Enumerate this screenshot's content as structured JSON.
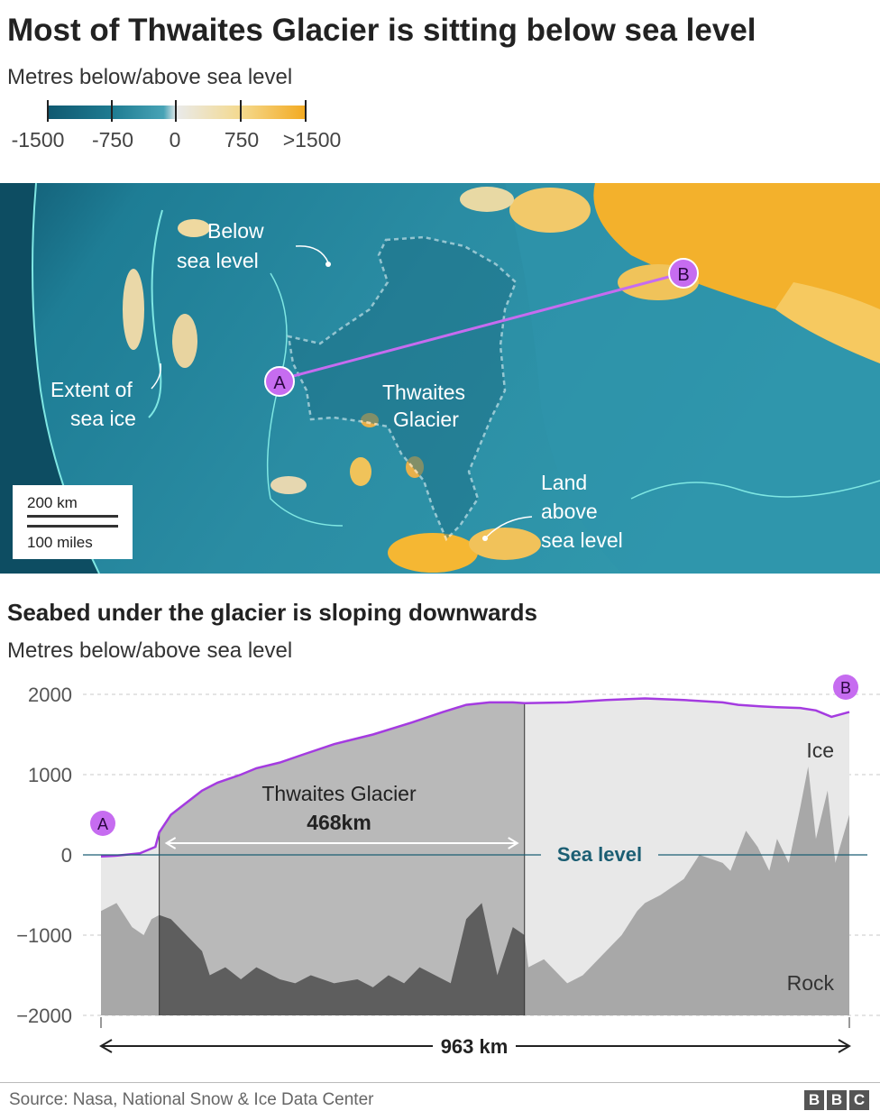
{
  "title": "Most of Thwaites Glacier is sitting below sea level",
  "map_legend": {
    "subtitle": "Metres below/above sea level",
    "ticks": [
      "-1500",
      "-750",
      "0",
      "750",
      ">1500"
    ]
  },
  "map": {
    "labels": {
      "below_1": "Below",
      "below_2": "sea level",
      "extent_1": "Extent of",
      "extent_2": "sea ice",
      "thwaites_1": "Thwaites",
      "thwaites_2": "Glacier",
      "land_1": "Land",
      "land_2": "above",
      "land_3": "sea level"
    },
    "point_a": "A",
    "point_b": "B",
    "scale_km": "200 km",
    "scale_miles": "100 miles",
    "colors": {
      "deep": "#0f5870",
      "mid": "#2b8ea6",
      "shallow": "#4fb0c4",
      "land": "#f3b12c",
      "coast": "#7fe7e3",
      "transect": "#c66cf0"
    }
  },
  "chart_title": "Seabed under the glacier is sloping downwards",
  "chart_ylabel": "Metres below/above sea level",
  "chart_data": {
    "type": "area",
    "title": "Seabed under the glacier is sloping downwards",
    "ylabel": "Metres below/above sea level",
    "ylim": [
      -2000,
      2000
    ],
    "yticks": [
      "2000",
      "1000",
      "0",
      "−1000",
      "−2000"
    ],
    "xlim_km": [
      0,
      963
    ],
    "distance_label": "963 km",
    "grid": "horizontal dashed",
    "series": [
      {
        "name": "Ice",
        "x_km": [
          0,
          20,
          50,
          70,
          75,
          90,
          110,
          130,
          150,
          180,
          200,
          230,
          260,
          300,
          350,
          400,
          440,
          470,
          500,
          530,
          545,
          600,
          650,
          700,
          750,
          800,
          820,
          850,
          870,
          900,
          920,
          940,
          963
        ],
        "values": [
          -20,
          -10,
          20,
          100,
          280,
          500,
          650,
          800,
          900,
          1000,
          1080,
          1150,
          1250,
          1380,
          1500,
          1650,
          1780,
          1870,
          1900,
          1900,
          1890,
          1900,
          1930,
          1950,
          1930,
          1900,
          1870,
          1850,
          1840,
          1830,
          1800,
          1720,
          1780
        ]
      },
      {
        "name": "Rock",
        "x_km": [
          0,
          20,
          40,
          55,
          65,
          75,
          90,
          110,
          130,
          140,
          160,
          180,
          200,
          230,
          250,
          270,
          300,
          330,
          350,
          370,
          390,
          410,
          430,
          450,
          470,
          490,
          510,
          530,
          545,
          550,
          570,
          600,
          620,
          650,
          670,
          690,
          700,
          720,
          750,
          770,
          800,
          810,
          830,
          845,
          860,
          870,
          885,
          900,
          910,
          920,
          935,
          945,
          963
        ],
        "values": [
          -700,
          -600,
          -900,
          -1000,
          -800,
          -750,
          -800,
          -1000,
          -1200,
          -1500,
          -1400,
          -1550,
          -1400,
          -1550,
          -1600,
          -1500,
          -1600,
          -1550,
          -1650,
          -1500,
          -1600,
          -1400,
          -1500,
          -1600,
          -800,
          -600,
          -1500,
          -900,
          -1000,
          -1400,
          -1300,
          -1600,
          -1500,
          -1200,
          -1000,
          -700,
          -600,
          -500,
          -300,
          0,
          -100,
          -200,
          300,
          100,
          -200,
          200,
          -100,
          600,
          1100,
          200,
          800,
          -100,
          500
        ]
      }
    ],
    "glacier_span": {
      "label": "Thwaites Glacier",
      "length": "468km",
      "start_km": 75,
      "end_km": 545
    },
    "annotations": {
      "sea_level": "Sea level",
      "ice": "Ice",
      "rock": "Rock",
      "start": "A",
      "end": "B"
    }
  },
  "source": "Source: Nasa, National Snow & Ice Data Center",
  "logo": [
    "B",
    "B",
    "C"
  ]
}
